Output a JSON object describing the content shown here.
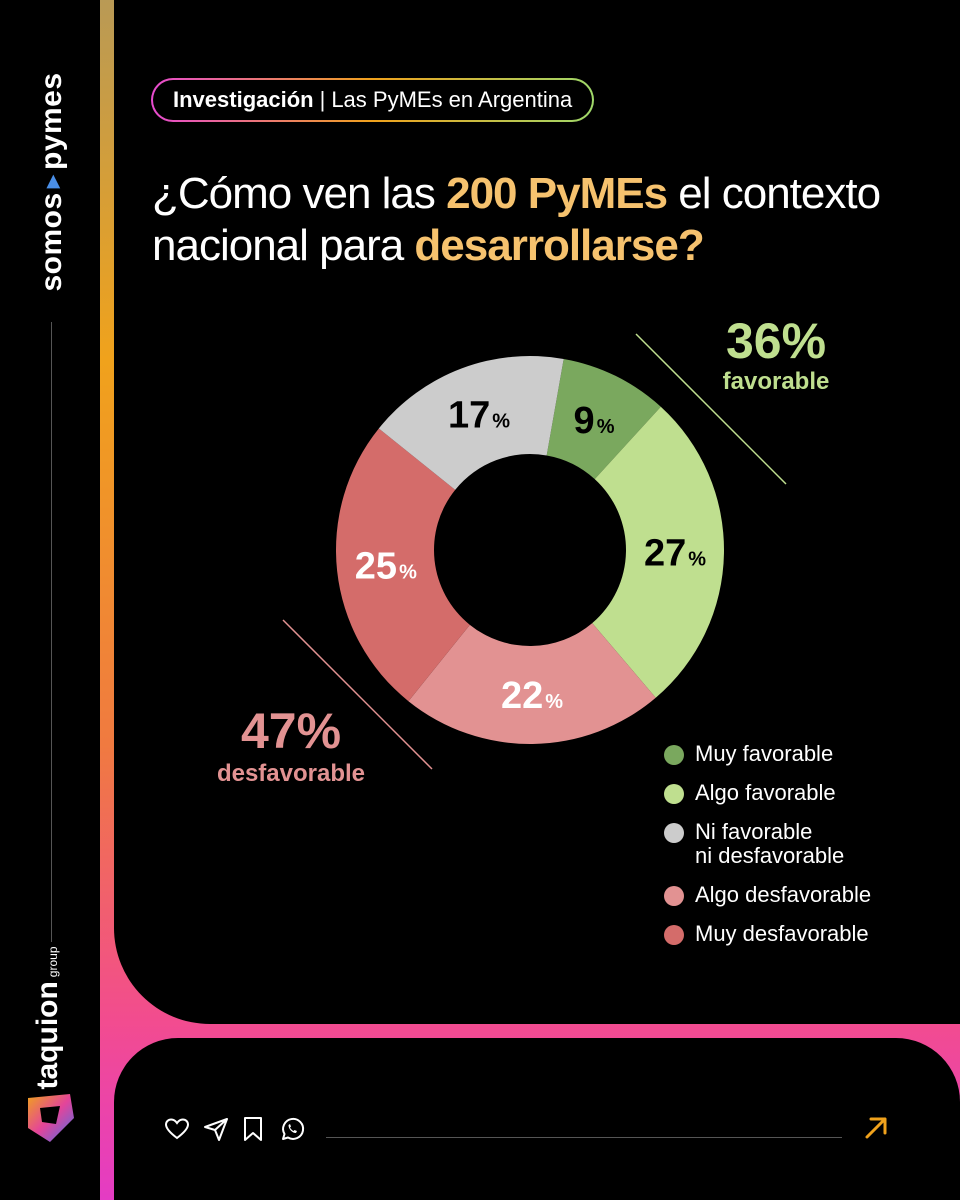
{
  "brand": {
    "somos": "somos",
    "pymes": "pymes",
    "taquion": "taquion",
    "group": "group"
  },
  "header": {
    "category": "Investigación",
    "separator": "|",
    "topic": "Las PyMEs en Argentina"
  },
  "title": {
    "part1": "¿Cómo ven las ",
    "highlight1": "200 PyMEs",
    "part2": " el contexto nacional para ",
    "highlight2": "desarrollarse?"
  },
  "summary": {
    "favorable": {
      "value": "36%",
      "label": "favorable"
    },
    "unfavorable": {
      "value": "47%",
      "label": "desfavorable"
    }
  },
  "chart_data": {
    "type": "pie",
    "title": "¿Cómo ven las 200 PyMEs el contexto nacional para desarrollarse?",
    "categories": [
      "Muy favorable",
      "Algo favorable",
      "Algo desfavorable",
      "Muy desfavorable",
      "Ni favorable ni desfavorable"
    ],
    "values": [
      9,
      27,
      22,
      25,
      17
    ],
    "unit": "%",
    "colors": [
      "#7aa85e",
      "#bfdf8f",
      "#e29292",
      "#d46c6a",
      "#cccccc"
    ],
    "label_colors": [
      "#000000",
      "#000000",
      "#ffffff",
      "#ffffff",
      "#000000"
    ],
    "donut": true,
    "legend_position": "bottom-right"
  },
  "legend": [
    {
      "label": "Muy favorable",
      "color": "#7aa85e"
    },
    {
      "label": "Algo favorable",
      "color": "#bfdf8f"
    },
    {
      "label": "Ni favorable\nni desfavorable",
      "color": "#cccccc"
    },
    {
      "label": "Algo desfavorable",
      "color": "#e29292"
    },
    {
      "label": "Muy desfavorable",
      "color": "#d46c6a"
    }
  ],
  "colors": {
    "highlight": "#f6c26e",
    "favorable": "#bfdf8f",
    "unfavorable": "#e29292",
    "accent_arrow": "#f0a21c"
  },
  "actions": [
    "heart-icon",
    "send-icon",
    "bookmark-icon",
    "whatsapp-icon",
    "arrow-up-right-icon"
  ]
}
